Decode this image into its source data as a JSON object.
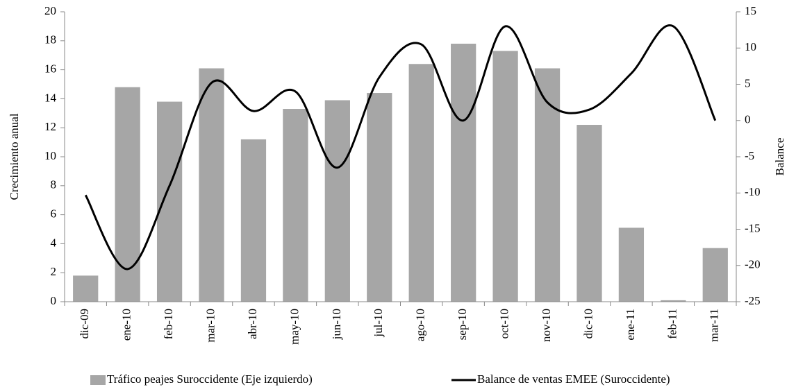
{
  "chart_data": {
    "type": "bar-line",
    "categories": [
      "dic-09",
      "ene-10",
      "feb-10",
      "mar-10",
      "abr-10",
      "may-10",
      "jun-10",
      "jul-10",
      "ago-10",
      "sep-10",
      "oct-10",
      "nov-10",
      "dic-10",
      "ene-11",
      "feb-11",
      "mar-11"
    ],
    "series": [
      {
        "name": "Tráfico peajes Suroccidente (Eje izquierdo)",
        "kind": "bar",
        "color": "#a6a6a6",
        "values": [
          1.8,
          14.8,
          13.8,
          16.1,
          11.2,
          13.3,
          13.9,
          14.4,
          16.4,
          17.8,
          17.3,
          16.1,
          12.2,
          5.1,
          0.1,
          3.7
        ]
      },
      {
        "name": "Balance de ventas EMEE (Suroccidente)",
        "kind": "line",
        "axis": "y2",
        "color": "#000000",
        "values": [
          -10.3,
          -20.5,
          -9,
          5.2,
          1.3,
          4,
          -6.5,
          6,
          10.5,
          0,
          13,
          2.5,
          1.5,
          6.5,
          13,
          0
        ]
      }
    ],
    "ylabel": "Crecimiento  anual",
    "y2label": "Balance",
    "ylim": [
      0,
      20
    ],
    "yticks": [
      0,
      2,
      4,
      6,
      8,
      10,
      12,
      14,
      16,
      18,
      20
    ],
    "y2lim": [
      -25,
      15
    ],
    "y2ticks": [
      -25,
      -20,
      -15,
      -10,
      -5,
      0,
      5,
      10,
      15
    ]
  }
}
